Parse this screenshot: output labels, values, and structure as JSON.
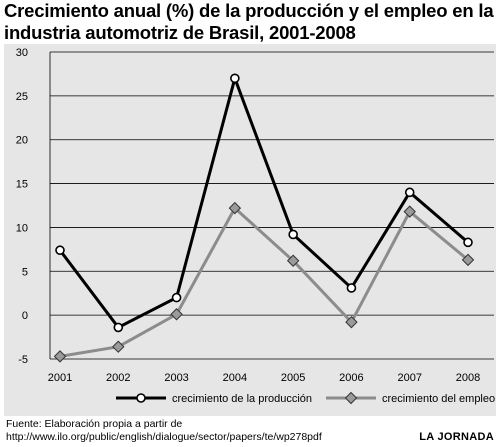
{
  "title_line1": "Crecimiento anual (%) de la producción y el empleo en la",
  "title_line2": "industria automotriz de Brasil, 2001-2008",
  "source_line1": "Fuente: Elaboración propia a partir de",
  "source_line2": "http://www.ilo.org/public/english/dialogue/sector/papers/te/wp278pdf",
  "credit": "LA JORNADA",
  "colors": {
    "background": "#e6e6e6",
    "production": "#000000",
    "employment": "#8c8c8c",
    "employment_marker": "#9a9a9a"
  },
  "chart_data": {
    "type": "line",
    "categories": [
      "2001",
      "2002",
      "2003",
      "2004",
      "2005",
      "2006",
      "2007",
      "2008"
    ],
    "ylim": [
      -5,
      30
    ],
    "yticks": [
      -5,
      0,
      5,
      10,
      15,
      20,
      25,
      30
    ],
    "grid": true,
    "legend_position": "bottom",
    "series": [
      {
        "name": "crecimiento de la producción",
        "marker": "circle",
        "color": "#000000",
        "values": [
          7.4,
          -1.4,
          2.0,
          27.0,
          9.2,
          3.1,
          14.0,
          8.3
        ]
      },
      {
        "name": "crecimiento del empleo",
        "marker": "diamond",
        "color": "#8c8c8c",
        "values": [
          -4.7,
          -3.6,
          0.1,
          12.2,
          6.2,
          -0.8,
          11.8,
          6.3
        ]
      }
    ]
  }
}
